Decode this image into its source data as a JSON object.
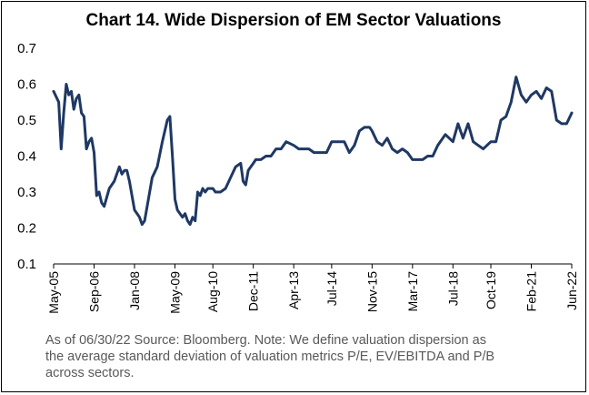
{
  "chart_data": {
    "type": "line",
    "title": "Chart 14. Wide Dispersion of EM Sector Valuations",
    "xlabel": "",
    "ylabel": "",
    "ylim": [
      0.1,
      0.7
    ],
    "yticks": [
      "0.1",
      "0.2",
      "0.3",
      "0.4",
      "0.5",
      "0.6",
      "0.7"
    ],
    "xticks": [
      "May-05",
      "Sep-06",
      "Jan-08",
      "May-09",
      "Aug-10",
      "Dec-11",
      "Apr-13",
      "Jul-14",
      "Nov-15",
      "Mar-17",
      "Jul-18",
      "Oct-19",
      "Feb-21",
      "Jun-22"
    ],
    "grid": false,
    "legend": "none",
    "line_color": "#1F3864",
    "series": [
      {
        "x": [
          "May-05",
          "Jul-05",
          "Aug-05",
          "Sep-05",
          "Oct-05",
          "Nov-05",
          "Dec-05",
          "Jan-06",
          "Feb-06",
          "Mar-06",
          "Apr-06",
          "May-06",
          "Jun-06",
          "Jul-06",
          "Aug-06",
          "Sep-06",
          "Oct-06",
          "Nov-06",
          "Dec-06",
          "Jan-07",
          "Mar-07",
          "May-07",
          "Jul-07",
          "Aug-07",
          "Sep-07",
          "Oct-07",
          "Nov-07",
          "Jan-08",
          "Feb-08",
          "Mar-08",
          "Apr-08",
          "May-08",
          "Jun-08",
          "Aug-08",
          "Oct-08",
          "Dec-08",
          "Feb-09",
          "Mar-09",
          "Apr-09",
          "May-09",
          "Jun-09",
          "Jul-09",
          "Aug-09",
          "Sep-09",
          "Oct-09",
          "Nov-09",
          "Dec-09",
          "Jan-10",
          "Feb-10",
          "Mar-10",
          "Apr-10",
          "May-10",
          "Jun-10",
          "Jul-10",
          "Aug-10",
          "Sep-10",
          "Nov-10",
          "Jan-11",
          "Mar-11",
          "May-11",
          "Jul-11",
          "Aug-11",
          "Sep-11",
          "Oct-11",
          "Dec-11",
          "Jan-12",
          "Mar-12",
          "May-12",
          "Jul-12",
          "Sep-12",
          "Nov-12",
          "Jan-13",
          "Apr-13",
          "Jun-13",
          "Aug-13",
          "Oct-13",
          "Dec-13",
          "Mar-14",
          "May-14",
          "Jul-14",
          "Sep-14",
          "Dec-14",
          "Feb-15",
          "Apr-15",
          "Jun-15",
          "Aug-15",
          "Oct-15",
          "Nov-15",
          "Jan-16",
          "Mar-16",
          "May-16",
          "Jul-16",
          "Sep-16",
          "Nov-16",
          "Jan-17",
          "Mar-17",
          "May-17",
          "Jul-17",
          "Sep-17",
          "Nov-17",
          "Jan-18",
          "Apr-18",
          "Jul-18",
          "Sep-18",
          "Nov-18",
          "Jan-19",
          "Mar-19",
          "May-19",
          "Jul-19",
          "Oct-19",
          "Dec-19",
          "Feb-20",
          "Apr-20",
          "Jun-20",
          "Aug-20",
          "Oct-20",
          "Dec-20",
          "Feb-21",
          "Apr-21",
          "Jun-21",
          "Aug-21",
          "Oct-21",
          "Dec-21",
          "Feb-22",
          "Apr-22",
          "Jun-22"
        ],
        "values": [
          0.58,
          0.55,
          0.42,
          0.52,
          0.6,
          0.57,
          0.58,
          0.53,
          0.56,
          0.57,
          0.52,
          0.51,
          0.42,
          0.44,
          0.45,
          0.41,
          0.29,
          0.3,
          0.27,
          0.26,
          0.31,
          0.33,
          0.37,
          0.35,
          0.36,
          0.36,
          0.33,
          0.25,
          0.24,
          0.23,
          0.21,
          0.22,
          0.26,
          0.34,
          0.37,
          0.44,
          0.5,
          0.51,
          0.4,
          0.28,
          0.25,
          0.24,
          0.23,
          0.24,
          0.22,
          0.21,
          0.23,
          0.22,
          0.3,
          0.29,
          0.31,
          0.3,
          0.31,
          0.31,
          0.31,
          0.3,
          0.3,
          0.31,
          0.34,
          0.37,
          0.38,
          0.33,
          0.32,
          0.36,
          0.38,
          0.39,
          0.39,
          0.4,
          0.4,
          0.42,
          0.42,
          0.44,
          0.43,
          0.42,
          0.42,
          0.42,
          0.41,
          0.41,
          0.41,
          0.44,
          0.44,
          0.44,
          0.41,
          0.43,
          0.47,
          0.48,
          0.48,
          0.47,
          0.44,
          0.43,
          0.45,
          0.42,
          0.41,
          0.42,
          0.41,
          0.39,
          0.39,
          0.39,
          0.4,
          0.4,
          0.43,
          0.46,
          0.44,
          0.49,
          0.45,
          0.49,
          0.44,
          0.43,
          0.42,
          0.44,
          0.44,
          0.5,
          0.51,
          0.55,
          0.62,
          0.57,
          0.55,
          0.57,
          0.58,
          0.56,
          0.59,
          0.58,
          0.5,
          0.49,
          0.49,
          0.52
        ]
      }
    ]
  },
  "note": {
    "line1": "As of 06/30/22 Source: Bloomberg.  Note: We define valuation dispersion as",
    "line2": "the average standard deviation of valuation metrics P/E, EV/EBITDA and P/B",
    "line3": "across sectors."
  }
}
